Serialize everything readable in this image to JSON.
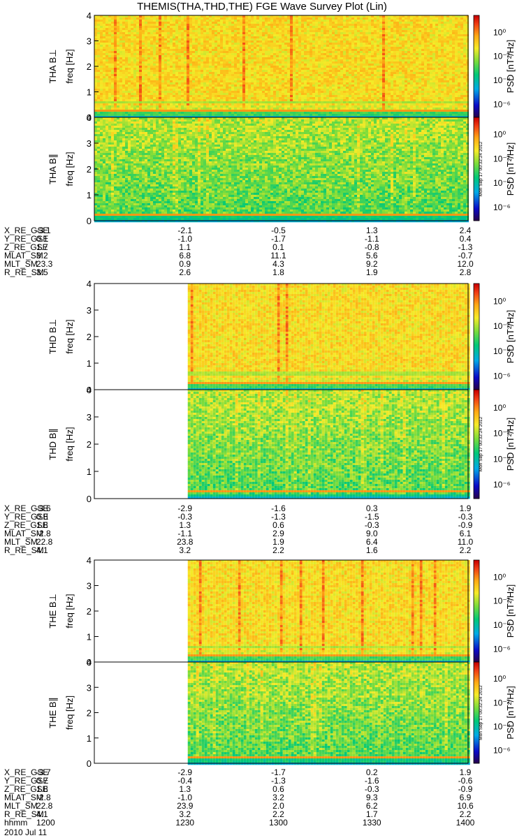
{
  "title": "THEMIS(THA,THD,THE) FGE Wave Survey Plot (Lin)",
  "colorbar": {
    "label": "PSD [nT²/Hz]",
    "ticks": [
      "10⁰",
      "10⁻²",
      "10⁻⁴",
      "10⁻⁶"
    ],
    "stamp": "Mon Sep 17 00:32:24 2012"
  },
  "chart_data": [
    {
      "type": "heatmap",
      "probe": "THA",
      "ylabel": "THA B⊥",
      "yunit": "freq [Hz]",
      "ylim": [
        0,
        4
      ],
      "yticks": [
        "0",
        "1",
        "2",
        "3",
        "4"
      ],
      "data_start_min": 0
    },
    {
      "type": "heatmap",
      "probe": "THA",
      "ylabel": "THA B∥",
      "yunit": "freq [Hz]",
      "ylim": [
        0,
        4
      ],
      "yticks": [
        "0",
        "1",
        "2",
        "3",
        "4"
      ],
      "data_start_min": 0
    },
    {
      "type": "heatmap",
      "probe": "THD",
      "ylabel": "THD B⊥",
      "yunit": "freq [Hz]",
      "ylim": [
        0,
        4
      ],
      "yticks": [
        "0",
        "1",
        "2",
        "3",
        "4"
      ],
      "data_start_min": 30
    },
    {
      "type": "heatmap",
      "probe": "THD",
      "ylabel": "THD B∥",
      "yunit": "freq [Hz]",
      "ylim": [
        0,
        4
      ],
      "yticks": [
        "0",
        "1",
        "2",
        "3",
        "4"
      ],
      "data_start_min": 30
    },
    {
      "type": "heatmap",
      "probe": "THE",
      "ylabel": "THE B⊥",
      "yunit": "freq [Hz]",
      "ylim": [
        0,
        4
      ],
      "yticks": [
        "0",
        "1",
        "2",
        "3",
        "4"
      ],
      "data_start_min": 30
    },
    {
      "type": "heatmap",
      "probe": "THE",
      "ylabel": "THE B∥",
      "yunit": "freq [Hz]",
      "ylim": [
        0,
        4
      ],
      "yticks": [
        "0",
        "1",
        "2",
        "3",
        "4"
      ],
      "data_start_min": 30
    }
  ],
  "ephemeris": [
    {
      "probe": "THA",
      "rows": [
        {
          "label": "X_RE_GSE",
          "values": [
            "-3.1",
            "-2.1",
            "-0.5",
            "1.3",
            "2.4"
          ]
        },
        {
          "label": "Y_RE_GSE",
          "values": [
            "0.1",
            "-1.0",
            "-1.7",
            "-1.1",
            "0.4"
          ]
        },
        {
          "label": "Z_RE_GSE",
          "values": [
            "1.7",
            "1.1",
            "0.1",
            "-0.8",
            "-1.3"
          ]
        },
        {
          "label": "MLAT_SM",
          "values": [
            "3.2",
            "6.8",
            "11.1",
            "5.6",
            "-0.7"
          ]
        },
        {
          "label": "MLT_SM",
          "values": [
            "23.3",
            "0.9",
            "4.3",
            "9.2",
            "12.0"
          ]
        },
        {
          "label": "R_RE_SM",
          "values": [
            "3.5",
            "2.6",
            "1.8",
            "1.9",
            "2.8"
          ]
        }
      ]
    },
    {
      "probe": "THD",
      "rows": [
        {
          "label": "X_RE_GSE",
          "values": [
            "-3.6",
            "-2.9",
            "-1.6",
            "0.3",
            "1.9"
          ]
        },
        {
          "label": "Y_RE_GSE",
          "values": [
            "0.8",
            "-0.3",
            "-1.3",
            "-1.5",
            "-0.3"
          ]
        },
        {
          "label": "Z_RE_GSE",
          "values": [
            "1.8",
            "1.3",
            "0.6",
            "-0.3",
            "-0.9"
          ]
        },
        {
          "label": "MLAT_SM",
          "values": [
            "-2.8",
            "-1.1",
            "2.9",
            "9.0",
            "6.1"
          ]
        },
        {
          "label": "MLT_SM",
          "values": [
            "22.8",
            "23.8",
            "1.9",
            "6.4",
            "11.0"
          ]
        },
        {
          "label": "R_RE_SM",
          "values": [
            "4.1",
            "3.2",
            "2.2",
            "1.6",
            "2.2"
          ]
        }
      ]
    },
    {
      "probe": "THE",
      "rows": [
        {
          "label": "X_RE_GSE",
          "values": [
            "-3.7",
            "-2.9",
            "-1.7",
            "0.2",
            "1.9"
          ]
        },
        {
          "label": "Y_RE_GSE",
          "values": [
            "0.7",
            "-0.4",
            "-1.3",
            "-1.6",
            "-0.6"
          ]
        },
        {
          "label": "Z_RE_GSE",
          "values": [
            "1.8",
            "1.3",
            "0.6",
            "-0.3",
            "-0.9"
          ]
        },
        {
          "label": "MLAT_SM",
          "values": [
            "-2.8",
            "-1.0",
            "3.2",
            "9.3",
            "6.9"
          ]
        },
        {
          "label": "MLT_SM",
          "values": [
            "22.8",
            "23.9",
            "2.0",
            "6.2",
            "10.6"
          ]
        },
        {
          "label": "R_RE_SM",
          "values": [
            "4.1",
            "3.2",
            "2.2",
            "1.7",
            "2.2"
          ]
        },
        {
          "label": "hhmm",
          "values": [
            "1200",
            "1230",
            "1300",
            "1330",
            "1400"
          ]
        }
      ]
    }
  ],
  "date_label": "2010 Jul 11"
}
